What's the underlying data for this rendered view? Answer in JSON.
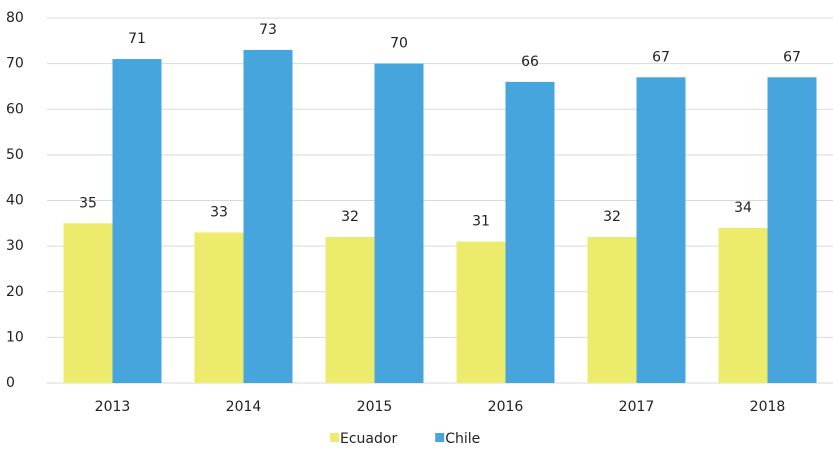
{
  "chart_data": {
    "type": "bar",
    "categories": [
      "2013",
      "2014",
      "2015",
      "2016",
      "2017",
      "2018"
    ],
    "series": [
      {
        "name": "Ecuador",
        "color": "#eceb6c",
        "values": [
          35,
          33,
          32,
          31,
          32,
          34
        ]
      },
      {
        "name": "Chile",
        "color": "#46a5dc",
        "values": [
          71,
          73,
          70,
          66,
          67,
          67
        ]
      }
    ],
    "ylim": [
      0,
      80
    ],
    "yticks": [
      0,
      10,
      20,
      30,
      40,
      50,
      60,
      70,
      80
    ],
    "grid": true,
    "legend": "bottom"
  }
}
